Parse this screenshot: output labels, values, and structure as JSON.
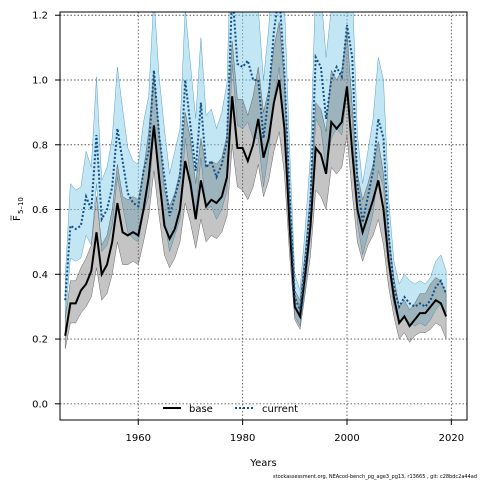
{
  "chart_data": {
    "type": "line",
    "title": "",
    "xlabel": "Years",
    "ylabel_main": "F",
    "ylabel_sub": "5–10",
    "xlim": [
      1945,
      2023
    ],
    "ylim": [
      -0.05,
      1.21
    ],
    "x_ticks": [
      1960,
      1980,
      2000,
      2020
    ],
    "y_ticks": [
      0.0,
      0.2,
      0.4,
      0.6,
      0.8,
      1.0,
      1.2
    ],
    "y_tick_labels": [
      "0.0",
      "0.2",
      "0.4",
      "0.6",
      "0.8",
      "1.0",
      "1.2"
    ],
    "grid": true,
    "legend_position": "bottom-center",
    "x": [
      1946,
      1947,
      1948,
      1949,
      1950,
      1951,
      1952,
      1953,
      1954,
      1955,
      1956,
      1957,
      1958,
      1959,
      1960,
      1961,
      1962,
      1963,
      1964,
      1965,
      1966,
      1967,
      1968,
      1969,
      1970,
      1971,
      1972,
      1973,
      1974,
      1975,
      1976,
      1977,
      1978,
      1979,
      1980,
      1981,
      1982,
      1983,
      1984,
      1985,
      1986,
      1987,
      1988,
      1989,
      1990,
      1991,
      1992,
      1993,
      1994,
      1995,
      1996,
      1997,
      1998,
      1999,
      2000,
      2001,
      2002,
      2003,
      2004,
      2005,
      2006,
      2007,
      2008,
      2009,
      2010,
      2011,
      2012,
      2013,
      2014,
      2015,
      2016,
      2017,
      2018,
      2019
    ],
    "series": [
      {
        "name": "base",
        "color": "#000000",
        "values": [
          0.21,
          0.31,
          0.31,
          0.35,
          0.37,
          0.41,
          0.53,
          0.4,
          0.43,
          0.5,
          0.62,
          0.53,
          0.52,
          0.53,
          0.52,
          0.6,
          0.7,
          0.86,
          0.7,
          0.55,
          0.51,
          0.54,
          0.6,
          0.75,
          0.68,
          0.57,
          0.69,
          0.61,
          0.63,
          0.62,
          0.64,
          0.7,
          0.95,
          0.79,
          0.79,
          0.75,
          0.8,
          0.88,
          0.76,
          0.82,
          0.93,
          1.0,
          0.85,
          0.55,
          0.3,
          0.27,
          0.4,
          0.55,
          0.79,
          0.77,
          0.71,
          0.87,
          0.85,
          0.87,
          0.98,
          0.78,
          0.6,
          0.53,
          0.58,
          0.63,
          0.69,
          0.6,
          0.44,
          0.33,
          0.25,
          0.27,
          0.24,
          0.26,
          0.28,
          0.28,
          0.3,
          0.32,
          0.31,
          0.27
        ],
        "lower": [
          0.17,
          0.25,
          0.25,
          0.28,
          0.3,
          0.33,
          0.42,
          0.32,
          0.34,
          0.4,
          0.5,
          0.43,
          0.43,
          0.44,
          0.43,
          0.5,
          0.58,
          0.72,
          0.58,
          0.46,
          0.42,
          0.45,
          0.5,
          0.62,
          0.56,
          0.48,
          0.57,
          0.5,
          0.52,
          0.51,
          0.53,
          0.58,
          0.8,
          0.67,
          0.66,
          0.63,
          0.67,
          0.74,
          0.64,
          0.69,
          0.78,
          0.84,
          0.71,
          0.46,
          0.26,
          0.23,
          0.34,
          0.46,
          0.66,
          0.64,
          0.6,
          0.73,
          0.71,
          0.73,
          0.83,
          0.65,
          0.5,
          0.44,
          0.49,
          0.52,
          0.57,
          0.49,
          0.36,
          0.27,
          0.2,
          0.22,
          0.19,
          0.21,
          0.22,
          0.22,
          0.23,
          0.25,
          0.24,
          0.2
        ],
        "upper": [
          0.26,
          0.38,
          0.38,
          0.42,
          0.45,
          0.49,
          0.64,
          0.49,
          0.52,
          0.6,
          0.74,
          0.64,
          0.63,
          0.64,
          0.63,
          0.72,
          0.84,
          1.02,
          0.84,
          0.66,
          0.61,
          0.65,
          0.72,
          0.9,
          0.82,
          0.68,
          0.82,
          0.73,
          0.75,
          0.74,
          0.76,
          0.83,
          1.12,
          0.94,
          0.94,
          0.89,
          0.95,
          1.04,
          0.9,
          0.97,
          1.1,
          1.18,
          1.0,
          0.65,
          0.35,
          0.32,
          0.47,
          0.65,
          0.93,
          0.91,
          0.84,
          1.03,
          1.0,
          1.03,
          1.15,
          0.92,
          0.71,
          0.63,
          0.68,
          0.74,
          0.81,
          0.71,
          0.52,
          0.39,
          0.3,
          0.32,
          0.29,
          0.31,
          0.34,
          0.34,
          0.37,
          0.39,
          0.38,
          0.34
        ]
      },
      {
        "name": "current",
        "color": "#0f4f86",
        "band_color": "#87ceeb",
        "values": [
          0.32,
          0.55,
          0.54,
          0.55,
          0.64,
          0.6,
          0.83,
          0.57,
          0.6,
          0.67,
          0.85,
          0.75,
          0.65,
          0.62,
          0.61,
          0.72,
          0.78,
          1.03,
          0.83,
          0.7,
          0.58,
          0.64,
          0.7,
          1.0,
          0.86,
          0.72,
          0.93,
          0.73,
          0.75,
          0.7,
          0.74,
          0.81,
          1.28,
          1.05,
          1.04,
          1.06,
          1.0,
          1.0,
          0.82,
          0.95,
          1.15,
          1.27,
          1.02,
          0.65,
          0.33,
          0.29,
          0.44,
          0.63,
          1.07,
          1.04,
          0.88,
          1.0,
          1.04,
          1.01,
          1.17,
          1.07,
          0.68,
          0.56,
          0.64,
          0.72,
          0.88,
          0.82,
          0.52,
          0.36,
          0.3,
          0.33,
          0.31,
          0.3,
          0.31,
          0.3,
          0.32,
          0.36,
          0.38,
          0.34
        ],
        "lower": [
          0.26,
          0.45,
          0.44,
          0.45,
          0.52,
          0.49,
          0.68,
          0.47,
          0.49,
          0.55,
          0.7,
          0.61,
          0.53,
          0.51,
          0.5,
          0.59,
          0.64,
          0.84,
          0.68,
          0.57,
          0.47,
          0.52,
          0.57,
          0.82,
          0.7,
          0.59,
          0.76,
          0.6,
          0.61,
          0.57,
          0.6,
          0.66,
          1.05,
          0.86,
          0.85,
          0.87,
          0.82,
          0.82,
          0.67,
          0.78,
          0.94,
          1.04,
          0.83,
          0.53,
          0.27,
          0.24,
          0.36,
          0.52,
          0.88,
          0.85,
          0.72,
          0.82,
          0.85,
          0.83,
          0.96,
          0.88,
          0.56,
          0.46,
          0.52,
          0.59,
          0.72,
          0.67,
          0.43,
          0.3,
          0.25,
          0.27,
          0.25,
          0.24,
          0.25,
          0.24,
          0.26,
          0.29,
          0.31,
          0.28
        ],
        "upper": [
          0.39,
          0.68,
          0.66,
          0.67,
          0.78,
          0.73,
          1.01,
          0.69,
          0.73,
          0.82,
          1.04,
          0.91,
          0.79,
          0.75,
          0.74,
          0.87,
          0.95,
          1.26,
          1.01,
          0.85,
          0.71,
          0.78,
          0.85,
          1.22,
          1.05,
          0.88,
          1.13,
          0.89,
          0.91,
          0.85,
          0.9,
          0.99,
          1.56,
          1.28,
          1.27,
          1.29,
          1.22,
          1.22,
          1.0,
          1.16,
          1.4,
          1.55,
          1.24,
          0.79,
          0.4,
          0.35,
          0.54,
          0.77,
          1.3,
          1.27,
          1.07,
          1.22,
          1.27,
          1.23,
          1.43,
          1.3,
          0.83,
          0.68,
          0.78,
          0.88,
          1.07,
          1.0,
          0.63,
          0.44,
          0.37,
          0.4,
          0.38,
          0.37,
          0.38,
          0.37,
          0.39,
          0.44,
          0.46,
          0.41
        ]
      }
    ]
  },
  "footer": "stockassessment.org, NEAcod-bench_pg_age3_pg13, r13665 , git: c28bdc2a44ad"
}
